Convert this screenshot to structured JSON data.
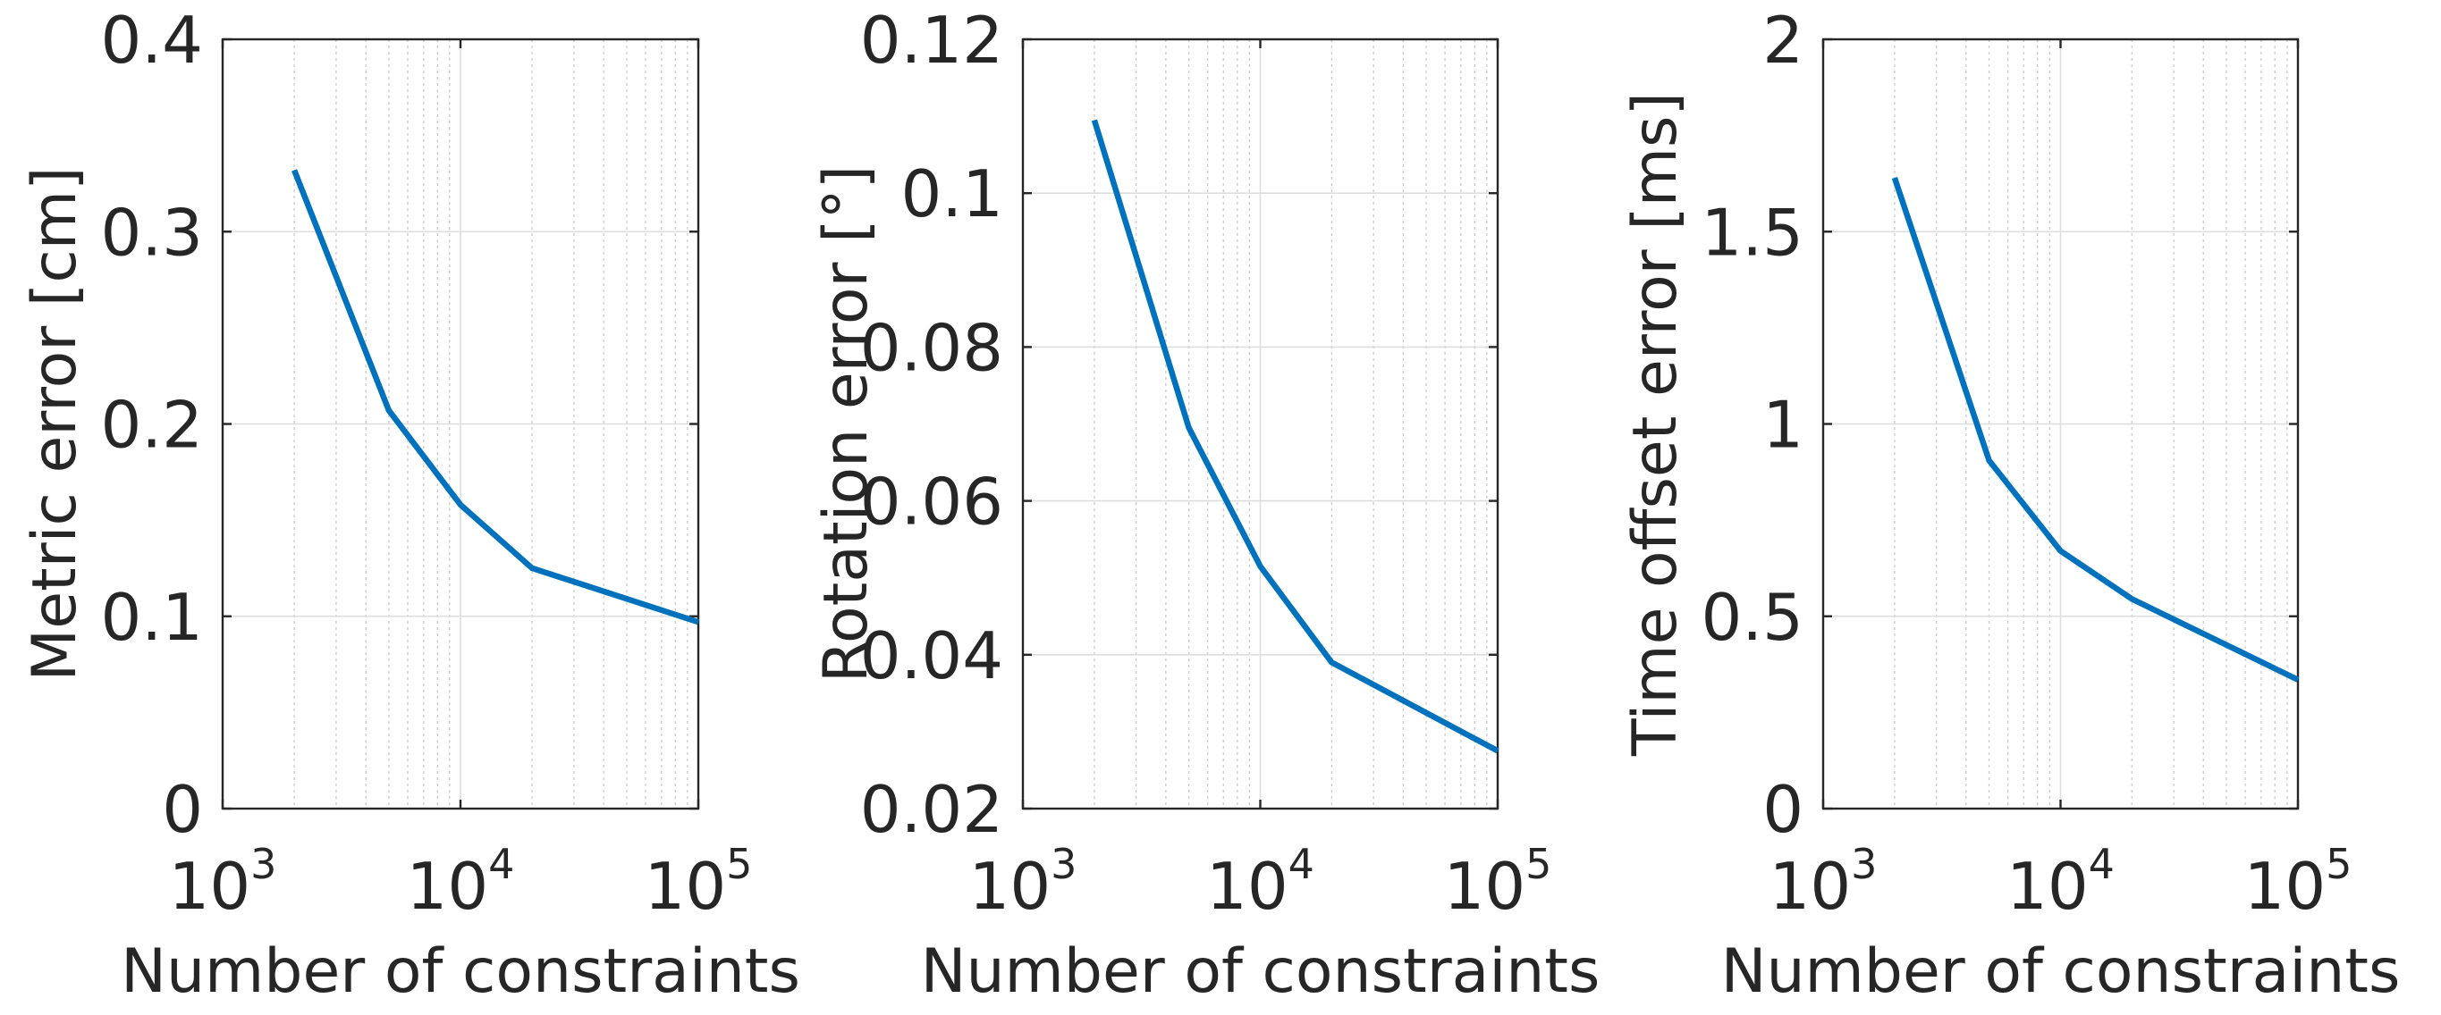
{
  "chart_data": [
    {
      "type": "line",
      "xscale": "log",
      "xlim": [
        1000,
        100000
      ],
      "ylim": [
        0,
        0.4
      ],
      "xlabel": "Number of constraints",
      "ylabel": "Metric error [cm]",
      "x_ticks": [
        1000,
        10000,
        100000
      ],
      "x_tick_labels": [
        {
          "base": "10",
          "exp": "3"
        },
        {
          "base": "10",
          "exp": "4"
        },
        {
          "base": "10",
          "exp": "5"
        }
      ],
      "y_ticks": [
        0,
        0.1,
        0.2,
        0.3,
        0.4
      ],
      "y_tick_labels": [
        "0",
        "0.1",
        "0.2",
        "0.3",
        "0.4"
      ],
      "grid": true,
      "series": [
        {
          "color": "#0072BD",
          "x": [
            2000,
            5000,
            10000,
            20000,
            100000
          ],
          "y": [
            0.332,
            0.207,
            0.158,
            0.125,
            0.097
          ]
        }
      ]
    },
    {
      "type": "line",
      "xscale": "log",
      "xlim": [
        1000,
        100000
      ],
      "ylim": [
        0.02,
        0.12
      ],
      "xlabel": "Number of constraints",
      "ylabel": "Rotation error [°]",
      "x_ticks": [
        1000,
        10000,
        100000
      ],
      "x_tick_labels": [
        {
          "base": "10",
          "exp": "3"
        },
        {
          "base": "10",
          "exp": "4"
        },
        {
          "base": "10",
          "exp": "5"
        }
      ],
      "y_ticks": [
        0.02,
        0.04,
        0.06,
        0.08,
        0.1,
        0.12
      ],
      "y_tick_labels": [
        "0.02",
        "0.04",
        "0.06",
        "0.08",
        "0.1",
        "0.12"
      ],
      "grid": true,
      "series": [
        {
          "color": "#0072BD",
          "x": [
            2000,
            5000,
            10000,
            20000,
            100000
          ],
          "y": [
            0.1095,
            0.0695,
            0.0515,
            0.039,
            0.0275
          ]
        }
      ]
    },
    {
      "type": "line",
      "xscale": "log",
      "xlim": [
        1000,
        100000
      ],
      "ylim": [
        0,
        2
      ],
      "xlabel": "Number of constraints",
      "ylabel": "Time offset error [ms]",
      "x_ticks": [
        1000,
        10000,
        100000
      ],
      "x_tick_labels": [
        {
          "base": "10",
          "exp": "3"
        },
        {
          "base": "10",
          "exp": "4"
        },
        {
          "base": "10",
          "exp": "5"
        }
      ],
      "y_ticks": [
        0,
        0.5,
        1,
        1.5,
        2
      ],
      "y_tick_labels": [
        "0",
        "0.5",
        "1",
        "1.5",
        "2"
      ],
      "grid": true,
      "series": [
        {
          "color": "#0072BD",
          "x": [
            2000,
            5000,
            10000,
            20000,
            100000
          ],
          "y": [
            1.64,
            0.905,
            0.67,
            0.545,
            0.335
          ]
        }
      ]
    }
  ]
}
